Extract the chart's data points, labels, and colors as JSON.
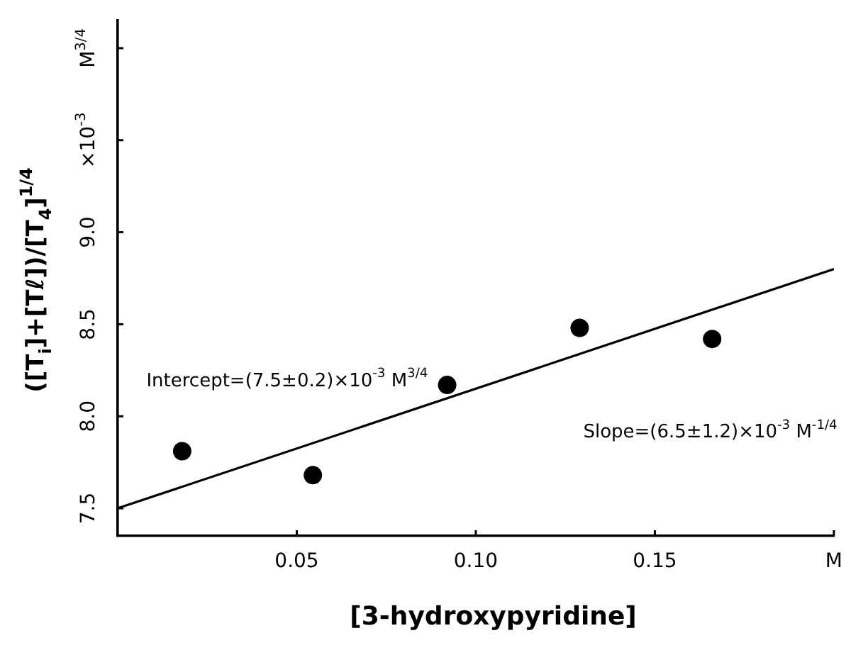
{
  "chart_data": {
    "type": "scatter",
    "xlabel": "[3-hydroxypyridine]",
    "ylabel": "([T$_{i}$]+[Tℓ])/[T$_{4}$]$^{1/4}$",
    "xlim": [
      0,
      0.2
    ],
    "xticks": [
      0.05,
      {
        "value": 0.1,
        "label": "0.10"
      },
      0.15,
      {
        "value": 0.2,
        "label": "M"
      }
    ],
    "ylim": [
      7.35,
      10.15
    ],
    "yticks": [
      7.5,
      {
        "value": 8,
        "label": "8.0"
      },
      8.5,
      {
        "value": 9,
        "label": "9.0"
      },
      {
        "value": 9.5,
        "label": "×10$^{-3}$"
      },
      {
        "value": 10,
        "label": "M$^{3/4}$"
      }
    ],
    "grid": false,
    "legend": false,
    "series": [
      {
        "type": "scatter",
        "color": "#000000",
        "marker": "circle",
        "x": [
          0.018,
          0.0545,
          0.092,
          0.129,
          0.166
        ],
        "values": [
          7.81,
          7.68,
          8.17,
          8.48,
          8.42
        ]
      },
      {
        "type": "line",
        "color": "#000000",
        "marker": "none",
        "line_style": "solid",
        "x": [
          0,
          0.2
        ],
        "values": [
          7.5,
          8.8
        ]
      }
    ],
    "annotations": [
      "Intercept=(7.5±0.2)×10$^{-3}$ M$^{3/4}$",
      "Slope=(6.5±1.2)×10$^{-3}$ M$^{-1/4}$"
    ]
  }
}
